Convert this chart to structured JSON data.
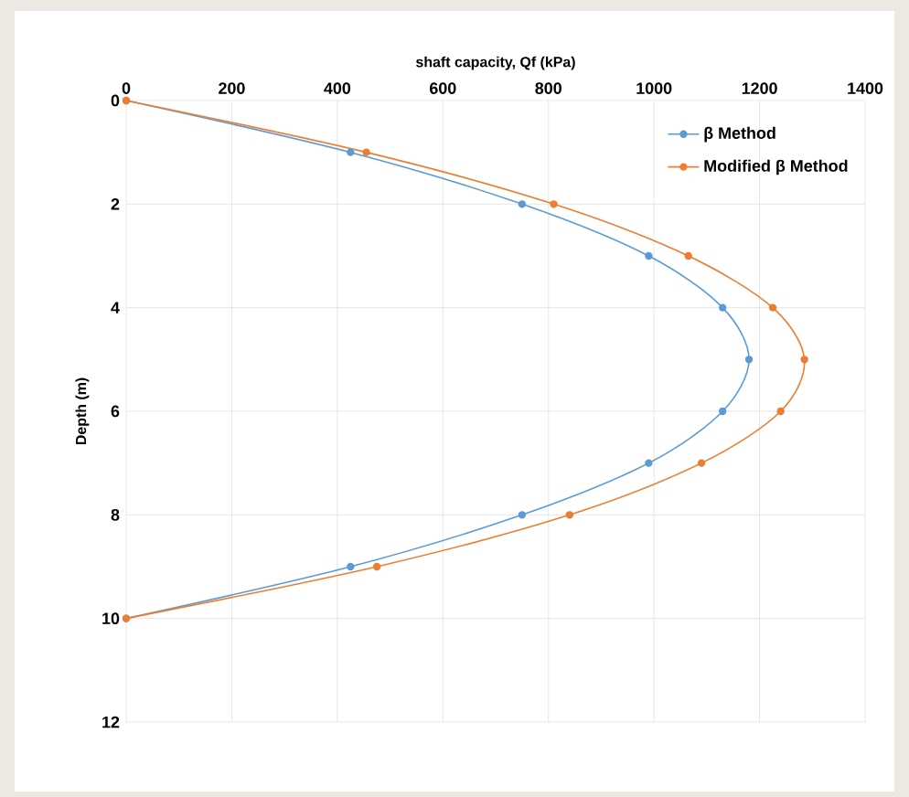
{
  "chart_data": {
    "type": "line",
    "xlabel": "shaft capacity, Qf (kPa)",
    "ylabel": "Depth (m)",
    "xlim": [
      0,
      1400
    ],
    "xticks": [
      0,
      200,
      400,
      600,
      800,
      1000,
      1200,
      1400
    ],
    "ylim": [
      12,
      0
    ],
    "yticks": [
      0,
      2,
      4,
      6,
      8,
      10,
      12
    ],
    "grid": true,
    "legend": "top right",
    "marker": "circle",
    "line_style": "solid",
    "series": [
      {
        "name": "β Method",
        "color": "#5b9bd5",
        "x": [
          0,
          425,
          750,
          990,
          1130,
          1180,
          1130,
          990,
          750,
          425,
          0
        ],
        "values": [
          0,
          1,
          2,
          3,
          4,
          5,
          6,
          7,
          8,
          9,
          10
        ]
      },
      {
        "name": "Modified β Method",
        "color": "#ed7d31",
        "x": [
          0,
          455,
          810,
          1065,
          1225,
          1285,
          1240,
          1090,
          840,
          475,
          0
        ],
        "values": [
          0,
          1,
          2,
          3,
          4,
          5,
          6,
          7,
          8,
          9,
          10
        ]
      }
    ]
  }
}
